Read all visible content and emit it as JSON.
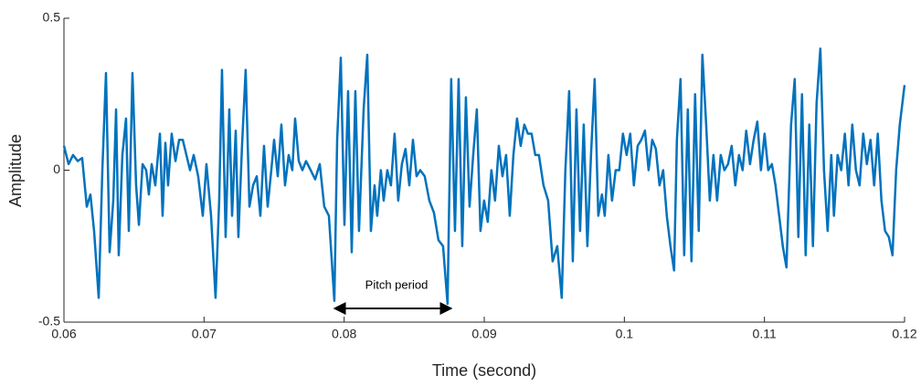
{
  "chart_data": {
    "type": "line",
    "x_label": "Time (second)",
    "y_label": "Amplitude",
    "annotation": "Pitch period",
    "xlim": [
      0.06,
      0.12
    ],
    "xticks": [
      0.06,
      0.07,
      0.08,
      0.09,
      0.1,
      0.11,
      0.12
    ],
    "ylim": [
      -0.5,
      0.5
    ],
    "yticks": [
      -0.5,
      0,
      0.5
    ],
    "grid": false,
    "x": [
      0.06,
      0.06033,
      0.06065,
      0.06098,
      0.0613,
      0.06163,
      0.06189,
      0.06215,
      0.06248,
      0.06274,
      0.063,
      0.06326,
      0.06352,
      0.06372,
      0.06391,
      0.06417,
      0.06443,
      0.06463,
      0.06489,
      0.06515,
      0.06535,
      0.06561,
      0.06587,
      0.06606,
      0.06626,
      0.06652,
      0.06685,
      0.06704,
      0.06724,
      0.06743,
      0.06769,
      0.06796,
      0.06822,
      0.06848,
      0.06874,
      0.069,
      0.06926,
      0.06958,
      0.06991,
      0.07017,
      0.0705,
      0.07082,
      0.07108,
      0.07128,
      0.07154,
      0.0718,
      0.072,
      0.07226,
      0.07245,
      0.07271,
      0.07297,
      0.07324,
      0.0735,
      0.07376,
      0.07402,
      0.07428,
      0.07454,
      0.0748,
      0.075,
      0.07526,
      0.07552,
      0.07578,
      0.07604,
      0.0763,
      0.0765,
      0.07676,
      0.07702,
      0.07728,
      0.07761,
      0.07793,
      0.07826,
      0.07858,
      0.07891,
      0.0793,
      0.0795,
      0.07976,
      0.08002,
      0.08028,
      0.08054,
      0.0808,
      0.08106,
      0.08139,
      0.08165,
      0.08191,
      0.08217,
      0.08236,
      0.08262,
      0.08282,
      0.08308,
      0.08334,
      0.0836,
      0.08386,
      0.08412,
      0.08438,
      0.08465,
      0.08491,
      0.08517,
      0.08543,
      0.08575,
      0.08608,
      0.08641,
      0.08673,
      0.08706,
      0.08738,
      0.08764,
      0.08791,
      0.08817,
      0.08843,
      0.08869,
      0.08895,
      0.08921,
      0.08947,
      0.08973,
      0.08999,
      0.09025,
      0.09051,
      0.09077,
      0.09104,
      0.0913,
      0.09156,
      0.09182,
      0.09208,
      0.09234,
      0.0926,
      0.09286,
      0.09312,
      0.09338,
      0.09364,
      0.0939,
      0.09423,
      0.09456,
      0.09488,
      0.09521,
      0.09553,
      0.09579,
      0.09606,
      0.09632,
      0.09658,
      0.09684,
      0.0971,
      0.09736,
      0.09762,
      0.09788,
      0.09814,
      0.0984,
      0.0986,
      0.09886,
      0.09912,
      0.09938,
      0.09964,
      0.0999,
      0.10016,
      0.10042,
      0.10068,
      0.10095,
      0.10121,
      0.10147,
      0.10173,
      0.10199,
      0.10225,
      0.10251,
      0.10277,
      0.10303,
      0.10329,
      0.10355,
      0.10375,
      0.10401,
      0.10427,
      0.10453,
      0.10479,
      0.10505,
      0.10531,
      0.10557,
      0.10584,
      0.1061,
      0.10636,
      0.10662,
      0.10688,
      0.10714,
      0.1074,
      0.10766,
      0.10792,
      0.10818,
      0.10844,
      0.1087,
      0.10897,
      0.10923,
      0.10949,
      0.10975,
      0.11001,
      0.11027,
      0.11053,
      0.11079,
      0.11105,
      0.11131,
      0.11157,
      0.1119,
      0.11216,
      0.11242,
      0.11268,
      0.11294,
      0.1132,
      0.11346,
      0.11372,
      0.11399,
      0.11425,
      0.11451,
      0.11477,
      0.11496,
      0.11522,
      0.11548,
      0.11574,
      0.116,
      0.11627,
      0.11653,
      0.11679,
      0.11705,
      0.11731,
      0.11757,
      0.11783,
      0.11809,
      0.11835,
      0.11861,
      0.11888,
      0.11914,
      0.1194,
      0.11966,
      0.12
    ],
    "series": [
      {
        "color": "#0072bd",
        "values": [
          0.08,
          0.02,
          0.05,
          0.03,
          0.04,
          -0.12,
          -0.08,
          -0.2,
          -0.42,
          0.0,
          0.32,
          -0.27,
          -0.1,
          0.2,
          -0.28,
          0.05,
          0.17,
          -0.2,
          0.32,
          -0.05,
          -0.18,
          0.02,
          0.0,
          -0.08,
          0.02,
          -0.05,
          0.12,
          -0.15,
          0.09,
          -0.05,
          0.12,
          0.03,
          0.1,
          0.1,
          0.05,
          0.0,
          0.05,
          -0.02,
          -0.15,
          0.02,
          -0.15,
          -0.42,
          -0.1,
          0.33,
          -0.22,
          0.2,
          -0.15,
          0.13,
          -0.22,
          0.08,
          0.33,
          -0.12,
          -0.05,
          -0.02,
          -0.15,
          0.08,
          -0.12,
          0.0,
          0.1,
          -0.02,
          0.15,
          -0.05,
          0.05,
          0.0,
          0.17,
          0.03,
          0.0,
          0.03,
          0.0,
          -0.03,
          0.02,
          -0.12,
          -0.15,
          -0.43,
          0.1,
          0.37,
          -0.18,
          0.26,
          -0.27,
          0.26,
          -0.2,
          0.2,
          0.38,
          -0.2,
          -0.05,
          -0.15,
          0.0,
          -0.1,
          0.0,
          -0.05,
          0.12,
          -0.1,
          0.02,
          0.07,
          -0.05,
          0.1,
          -0.02,
          0.0,
          -0.02,
          -0.1,
          -0.14,
          -0.23,
          -0.25,
          -0.44,
          0.3,
          -0.2,
          0.3,
          -0.25,
          0.24,
          -0.12,
          0.05,
          0.2,
          -0.2,
          -0.1,
          -0.17,
          0.0,
          -0.1,
          0.08,
          -0.02,
          0.05,
          -0.15,
          0.05,
          0.17,
          0.08,
          0.15,
          0.12,
          0.12,
          0.05,
          0.05,
          -0.05,
          -0.1,
          -0.3,
          -0.25,
          -0.42,
          0.0,
          0.26,
          -0.3,
          0.2,
          -0.2,
          0.15,
          -0.25,
          0.05,
          0.3,
          -0.15,
          -0.08,
          -0.15,
          0.05,
          -0.1,
          0.0,
          0.0,
          0.12,
          0.05,
          0.12,
          -0.05,
          0.08,
          0.1,
          0.13,
          0.0,
          0.1,
          0.07,
          -0.05,
          0.0,
          -0.15,
          -0.25,
          -0.33,
          0.1,
          0.3,
          -0.28,
          0.2,
          -0.3,
          0.25,
          -0.2,
          0.38,
          0.15,
          -0.1,
          0.05,
          -0.1,
          0.05,
          0.0,
          0.02,
          0.08,
          -0.05,
          0.05,
          0.0,
          0.13,
          0.02,
          0.1,
          0.16,
          0.0,
          0.12,
          0.0,
          0.02,
          -0.05,
          -0.15,
          -0.25,
          -0.32,
          0.15,
          0.3,
          -0.22,
          0.25,
          -0.28,
          0.15,
          -0.25,
          0.22,
          0.4,
          0.0,
          -0.2,
          0.05,
          -0.15,
          0.05,
          0.0,
          0.12,
          -0.05,
          0.15,
          0.0,
          -0.05,
          0.12,
          0.02,
          0.1,
          -0.05,
          0.12,
          -0.1,
          -0.2,
          -0.22,
          -0.28,
          0.0,
          0.15,
          0.28
        ]
      }
    ]
  }
}
